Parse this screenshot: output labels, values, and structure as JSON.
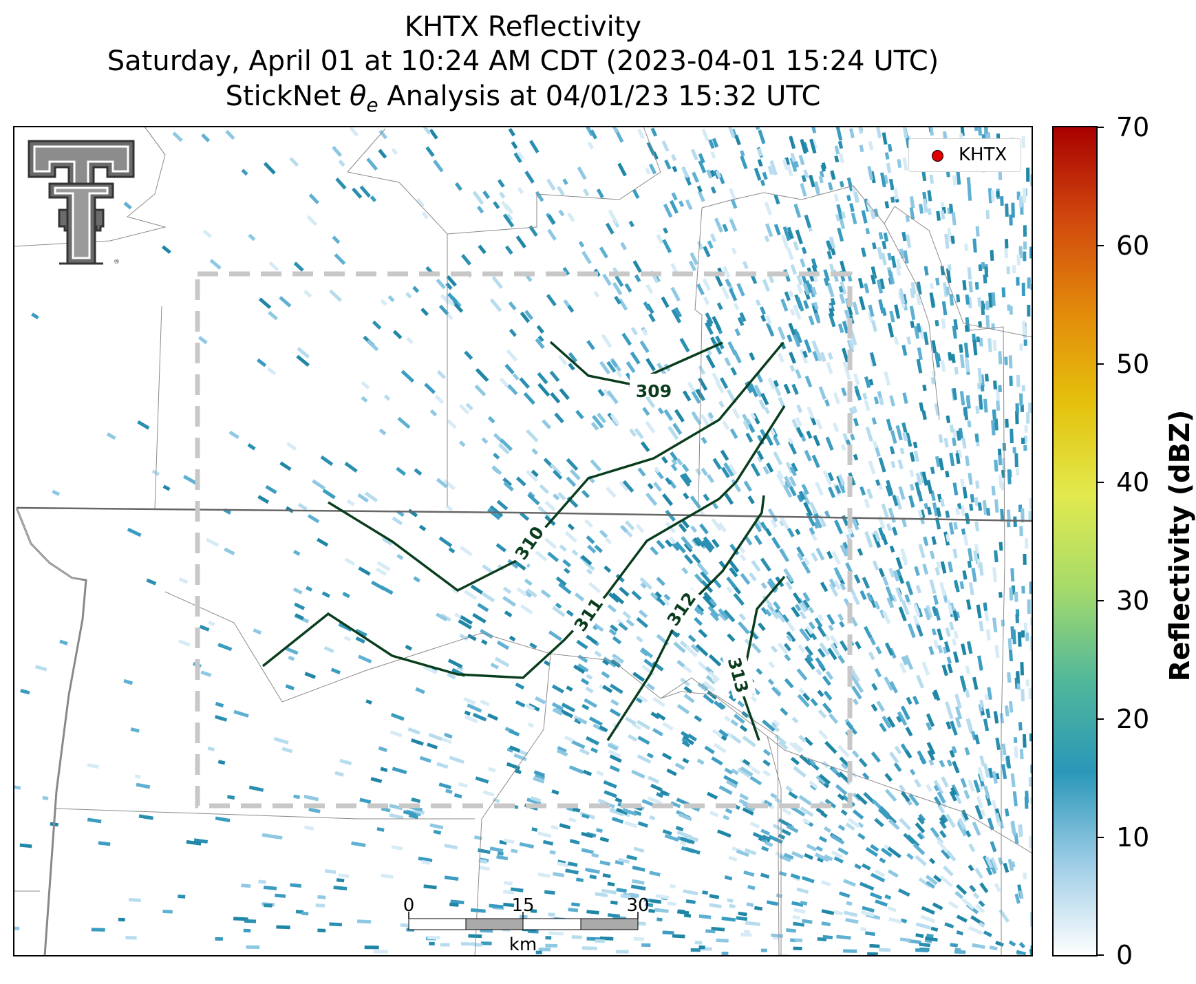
{
  "title": {
    "line1": "KHTX Reflectivity",
    "line2": "Saturday, April 01 at 10:24 AM CDT (2023-04-01 15:24 UTC)",
    "line3_prefix": "StickNet ",
    "line3_symbol": "θ",
    "line3_subscript": "e",
    "line3_suffix": " Analysis at 04/01/23 15:32 UTC"
  },
  "legend": {
    "label": "KHTX",
    "marker_color": "#e00000"
  },
  "colorbar": {
    "label": "Reflectivity (dBZ)",
    "ticks": [
      "70",
      "60",
      "50",
      "40",
      "30",
      "20",
      "10",
      "0"
    ],
    "range": [
      0,
      70
    ],
    "colors": [
      "#ffffff",
      "#9ecde6",
      "#2a97b8",
      "#52b89a",
      "#a6db6a",
      "#e2ea4e",
      "#e4c10c",
      "#e38a0b",
      "#d1480e",
      "#a80000"
    ]
  },
  "scale_bar": {
    "labels": [
      "0",
      "15",
      "30"
    ],
    "unit": "km"
  },
  "contours": {
    "color": "#0a3d1e",
    "labels": [
      "309",
      "310",
      "311",
      "312",
      "313"
    ]
  },
  "logo": {
    "name": "Texas Tech Double T"
  }
}
